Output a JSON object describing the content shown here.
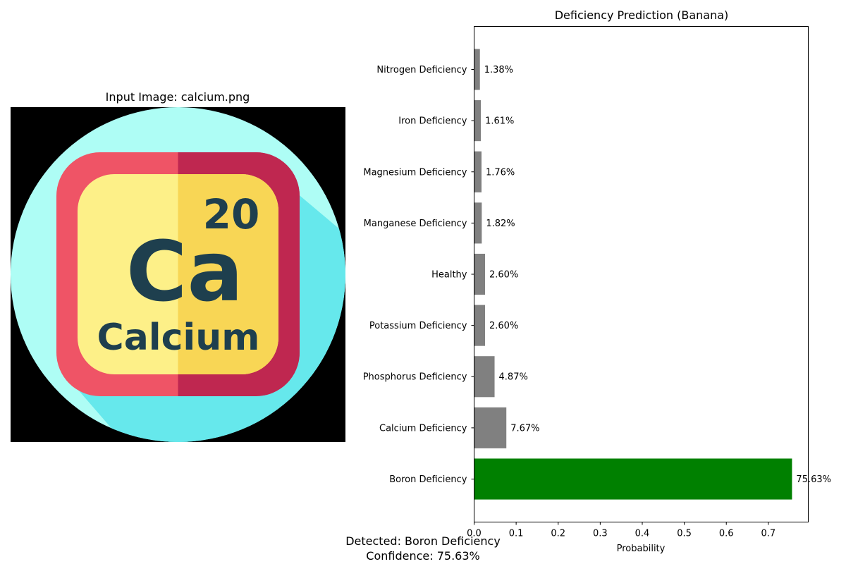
{
  "input_panel": {
    "title": "Input Image: calcium.png",
    "icon": {
      "symbol": "Ca",
      "atomic_number": "20",
      "element_name": "Calcium"
    }
  },
  "chart_data": {
    "type": "bar",
    "orientation": "horizontal",
    "title": "Deficiency Prediction (Banana)",
    "xlabel": "Probability",
    "ylabel": "",
    "xlim": [
      0,
      0.795
    ],
    "xticks": [
      0.0,
      0.1,
      0.2,
      0.3,
      0.4,
      0.5,
      0.6,
      0.7
    ],
    "xtick_labels": [
      "0.0",
      "0.1",
      "0.2",
      "0.3",
      "0.4",
      "0.5",
      "0.6",
      "0.7"
    ],
    "grid": false,
    "categories": [
      "Boron Deficiency",
      "Calcium Deficiency",
      "Phosphorus Deficiency",
      "Potassium Deficiency",
      "Healthy",
      "Manganese Deficiency",
      "Magnesium Deficiency",
      "Iron Deficiency",
      "Nitrogen Deficiency"
    ],
    "values": [
      0.7563,
      0.0767,
      0.0487,
      0.026,
      0.026,
      0.0182,
      0.0176,
      0.0161,
      0.0138
    ],
    "labels": [
      "75.63%",
      "7.67%",
      "4.87%",
      "2.60%",
      "2.60%",
      "1.82%",
      "1.76%",
      "1.61%",
      "1.38%"
    ],
    "colors": [
      "#008000",
      "#808080",
      "#808080",
      "#808080",
      "#808080",
      "#808080",
      "#808080",
      "#808080",
      "#808080"
    ]
  },
  "result": {
    "detected": "Detected: Boron Deficiency",
    "confidence": "Confidence: 75.63%"
  }
}
